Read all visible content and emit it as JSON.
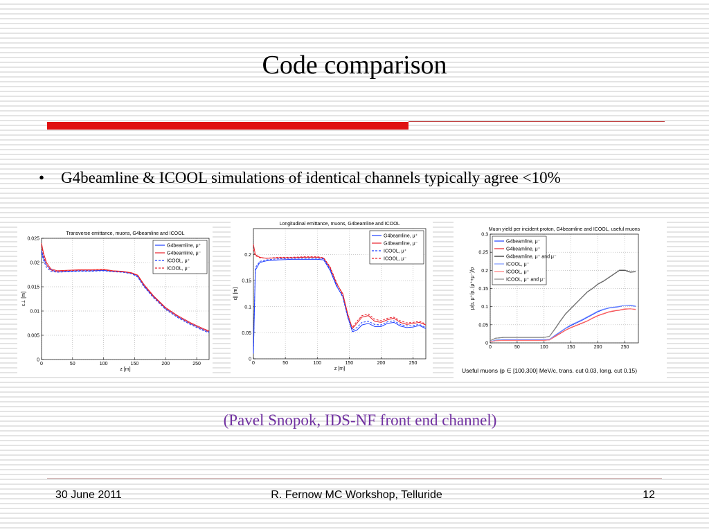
{
  "title": "Code comparison",
  "bullet": "G4beamline & ICOOL simulations of identical channels typically agree <10%",
  "caption": "(Pavel Snopok, IDS-NF front end channel)",
  "footer": {
    "date": "30 June 2011",
    "center": "R. Fernow   MC Workshop, Telluride",
    "page": "12"
  },
  "chart_data": [
    {
      "type": "line",
      "title": "Transverse emittance, muons, G4beamline and ICOOL",
      "xlabel": "z [m]",
      "ylabel": "ε⊥ [m]",
      "xlim": [
        0,
        270
      ],
      "xticks": [
        0,
        50,
        100,
        150,
        200,
        250
      ],
      "ylim": [
        0,
        0.025
      ],
      "yticks": [
        0,
        0.005,
        0.01,
        0.015,
        0.02,
        0.025
      ],
      "grid": true,
      "legend": "upper right",
      "x": [
        0,
        3,
        8,
        15,
        25,
        40,
        60,
        80,
        100,
        115,
        130,
        145,
        155,
        165,
        180,
        200,
        220,
        240,
        260,
        270
      ],
      "series": [
        {
          "name": "G4beamline, μ⁺",
          "color": "#1f3fff",
          "dash": false,
          "values": [
            0.0225,
            0.021,
            0.0195,
            0.0185,
            0.0181,
            0.0182,
            0.0183,
            0.0183,
            0.0184,
            0.0182,
            0.0181,
            0.0178,
            0.0172,
            0.0152,
            0.013,
            0.0105,
            0.0088,
            0.0074,
            0.0062,
            0.0057
          ]
        },
        {
          "name": "G4beamline, μ⁻",
          "color": "#e8202a",
          "dash": false,
          "values": [
            0.024,
            0.022,
            0.02,
            0.0187,
            0.0183,
            0.0184,
            0.0185,
            0.0185,
            0.0186,
            0.0183,
            0.0182,
            0.0179,
            0.0174,
            0.0155,
            0.0132,
            0.0107,
            0.009,
            0.0076,
            0.0064,
            0.0059
          ]
        },
        {
          "name": "ICOOL, μ⁺",
          "color": "#1f3fff",
          "dash": true,
          "values": [
            0.022,
            0.0205,
            0.019,
            0.0182,
            0.018,
            0.0181,
            0.0182,
            0.0182,
            0.0183,
            0.0181,
            0.018,
            0.0177,
            0.017,
            0.015,
            0.0128,
            0.0103,
            0.0086,
            0.0072,
            0.006,
            0.0055
          ]
        },
        {
          "name": "ICOOL, μ⁻",
          "color": "#e8202a",
          "dash": true,
          "values": [
            0.0235,
            0.0215,
            0.0195,
            0.0184,
            0.0181,
            0.0183,
            0.0184,
            0.0184,
            0.0185,
            0.0182,
            0.0181,
            0.0178,
            0.0173,
            0.0153,
            0.013,
            0.0105,
            0.0088,
            0.0074,
            0.0062,
            0.0057
          ]
        }
      ]
    },
    {
      "type": "line",
      "title": "Longitudinal emittance, muons, G4beamline and ICOOL",
      "xlabel": "z [m]",
      "ylabel": "ε|| [m]",
      "xlim": [
        0,
        270
      ],
      "xticks": [
        0,
        50,
        100,
        150,
        200,
        250
      ],
      "ylim": [
        0,
        0.25
      ],
      "yticks": [
        0,
        0.05,
        0.1,
        0.15,
        0.2
      ],
      "grid": true,
      "legend": "upper right",
      "x": [
        0,
        3,
        10,
        20,
        40,
        60,
        80,
        100,
        110,
        120,
        130,
        140,
        148,
        155,
        162,
        170,
        180,
        190,
        200,
        210,
        220,
        230,
        240,
        250,
        260,
        270
      ],
      "series": [
        {
          "name": "G4beamline, μ⁺",
          "color": "#1f3fff",
          "dash": false,
          "values": [
            0.01,
            0.17,
            0.185,
            0.188,
            0.19,
            0.191,
            0.191,
            0.191,
            0.19,
            0.17,
            0.14,
            0.12,
            0.08,
            0.052,
            0.055,
            0.065,
            0.068,
            0.062,
            0.062,
            0.068,
            0.07,
            0.063,
            0.06,
            0.061,
            0.064,
            0.058
          ]
        },
        {
          "name": "G4beamline, μ⁻",
          "color": "#e8202a",
          "dash": false,
          "values": [
            0.22,
            0.2,
            0.195,
            0.193,
            0.194,
            0.194,
            0.195,
            0.195,
            0.193,
            0.175,
            0.145,
            0.125,
            0.085,
            0.058,
            0.068,
            0.08,
            0.083,
            0.072,
            0.07,
            0.075,
            0.078,
            0.07,
            0.066,
            0.068,
            0.07,
            0.065
          ]
        },
        {
          "name": "ICOOL, μ⁺",
          "color": "#1f3fff",
          "dash": true,
          "values": [
            0.01,
            0.175,
            0.187,
            0.19,
            0.192,
            0.193,
            0.193,
            0.193,
            0.192,
            0.172,
            0.142,
            0.118,
            0.078,
            0.055,
            0.06,
            0.07,
            0.072,
            0.066,
            0.065,
            0.071,
            0.073,
            0.066,
            0.063,
            0.064,
            0.066,
            0.06
          ]
        },
        {
          "name": "ICOOL, μ⁻",
          "color": "#e8202a",
          "dash": true,
          "values": [
            0.21,
            0.198,
            0.194,
            0.193,
            0.195,
            0.195,
            0.196,
            0.196,
            0.194,
            0.177,
            0.147,
            0.122,
            0.083,
            0.06,
            0.072,
            0.083,
            0.086,
            0.076,
            0.073,
            0.078,
            0.08,
            0.073,
            0.069,
            0.07,
            0.072,
            0.067
          ]
        }
      ]
    },
    {
      "type": "line",
      "title": "Muon yield per incident proton, G4beamline and ICOOL, useful muons",
      "ylabel": "μ/p, μ⁺/p, (μ⁺+μ⁻)/p",
      "note": "Useful muons (p ∈ [100,300] MeV/c, trans. cut 0.03, long. cut 0.15)",
      "xlim": [
        0,
        275
      ],
      "xticks": [
        0,
        50,
        100,
        150,
        200,
        250
      ],
      "ylim": [
        0,
        0.3
      ],
      "yticks": [
        0,
        0.05,
        0.1,
        0.15,
        0.2,
        0.25,
        0.3
      ],
      "grid": true,
      "legend": "upper left",
      "x": [
        0,
        10,
        25,
        50,
        75,
        100,
        110,
        120,
        130,
        140,
        150,
        160,
        170,
        180,
        190,
        200,
        210,
        220,
        230,
        240,
        250,
        260,
        270
      ],
      "series": [
        {
          "name": "G4beamline, μ⁻",
          "color": "#1f3fff",
          "dash": false,
          "values": [
            0.003,
            0.008,
            0.009,
            0.009,
            0.009,
            0.009,
            0.01,
            0.02,
            0.03,
            0.04,
            0.048,
            0.055,
            0.062,
            0.07,
            0.078,
            0.086,
            0.092,
            0.096,
            0.098,
            0.1,
            0.104,
            0.104,
            0.101
          ]
        },
        {
          "name": "G4beamline, μ⁺",
          "color": "#e8202a",
          "dash": false,
          "values": [
            0.003,
            0.006,
            0.007,
            0.007,
            0.007,
            0.007,
            0.008,
            0.017,
            0.026,
            0.035,
            0.042,
            0.048,
            0.054,
            0.06,
            0.068,
            0.075,
            0.08,
            0.085,
            0.088,
            0.09,
            0.093,
            0.094,
            0.092
          ]
        },
        {
          "name": "G4beamline, μ⁺ and μ⁻",
          "color": "#222222",
          "dash": false,
          "values": [
            0.006,
            0.013,
            0.015,
            0.015,
            0.015,
            0.015,
            0.018,
            0.038,
            0.06,
            0.08,
            0.095,
            0.11,
            0.125,
            0.14,
            0.15,
            0.162,
            0.17,
            0.18,
            0.19,
            0.2,
            0.2,
            0.195,
            0.196
          ]
        },
        {
          "name": "ICOOL, μ⁻",
          "color": "#7a96ff",
          "dash": false,
          "values": [
            0.003,
            0.008,
            0.009,
            0.009,
            0.009,
            0.009,
            0.01,
            0.021,
            0.031,
            0.041,
            0.05,
            0.057,
            0.064,
            0.072,
            0.08,
            0.088,
            0.093,
            0.097,
            0.099,
            0.101,
            0.104,
            0.103,
            0.1
          ]
        },
        {
          "name": "ICOOL, μ⁺",
          "color": "#ff7a7a",
          "dash": false,
          "values": [
            0.003,
            0.006,
            0.007,
            0.007,
            0.007,
            0.007,
            0.008,
            0.018,
            0.027,
            0.036,
            0.043,
            0.049,
            0.055,
            0.061,
            0.069,
            0.076,
            0.081,
            0.086,
            0.089,
            0.091,
            0.094,
            0.094,
            0.093
          ]
        },
        {
          "name": "ICOOL, μ⁺ and μ⁻",
          "color": "#888888",
          "dash": false,
          "values": [
            0.006,
            0.013,
            0.015,
            0.015,
            0.015,
            0.015,
            0.018,
            0.039,
            0.061,
            0.081,
            0.096,
            0.111,
            0.126,
            0.141,
            0.151,
            0.163,
            0.171,
            0.181,
            0.191,
            0.201,
            0.201,
            0.196,
            0.197
          ]
        }
      ]
    }
  ]
}
